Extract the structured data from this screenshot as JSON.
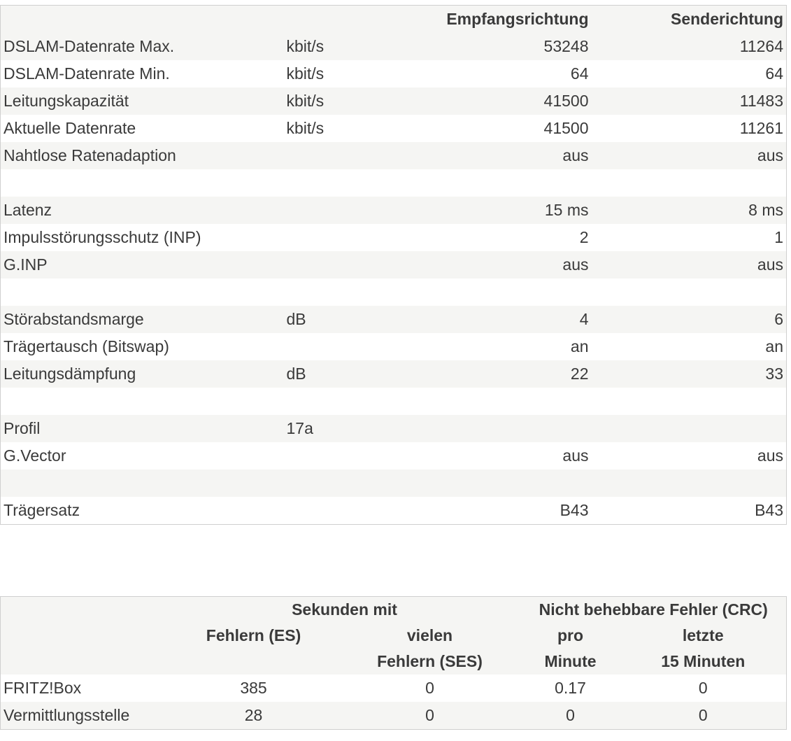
{
  "line_table": {
    "headers": [
      "",
      "",
      "Empfangsrichtung",
      "Senderichtung"
    ],
    "rows": [
      {
        "label": "DSLAM-Datenrate Max.",
        "unit": "kbit/s",
        "rx": "53248",
        "tx": "11264"
      },
      {
        "label": "DSLAM-Datenrate Min.",
        "unit": "kbit/s",
        "rx": "64",
        "tx": "64"
      },
      {
        "label": "Leitungskapazität",
        "unit": "kbit/s",
        "rx": "41500",
        "tx": "11483"
      },
      {
        "label": "Aktuelle Datenrate",
        "unit": "kbit/s",
        "rx": "41500",
        "tx": "11261"
      },
      {
        "label": "Nahtlose Ratenadaption",
        "unit": "",
        "rx": "aus",
        "tx": "aus"
      },
      {
        "label": "",
        "unit": "",
        "rx": "",
        "tx": ""
      },
      {
        "label": "Latenz",
        "unit": "",
        "rx": "15 ms",
        "tx": "8 ms"
      },
      {
        "label": "Impulsstörungsschutz (INP)",
        "unit": "",
        "rx": "2",
        "tx": "1"
      },
      {
        "label": "G.INP",
        "unit": "",
        "rx": "aus",
        "tx": "aus"
      },
      {
        "label": "",
        "unit": "",
        "rx": "",
        "tx": ""
      },
      {
        "label": "Störabstandsmarge",
        "unit": "dB",
        "rx": "4",
        "tx": "6"
      },
      {
        "label": "Trägertausch (Bitswap)",
        "unit": "",
        "rx": "an",
        "tx": "an"
      },
      {
        "label": "Leitungsdämpfung",
        "unit": "dB",
        "rx": "22",
        "tx": "33"
      },
      {
        "label": "",
        "unit": "",
        "rx": "",
        "tx": ""
      },
      {
        "label": "Profil",
        "unit": "17a",
        "rx": "",
        "tx": ""
      },
      {
        "label": "G.Vector",
        "unit": "",
        "rx": "aus",
        "tx": "aus"
      },
      {
        "label": "",
        "unit": "",
        "rx": "",
        "tx": ""
      },
      {
        "label": "Trägersatz",
        "unit": "",
        "rx": "B43",
        "tx": "B43"
      }
    ]
  },
  "error_table": {
    "group_seconds": "Sekunden mit",
    "group_crc": "Nicht behebbare Fehler (CRC)",
    "col_es": "Fehlern (ES)",
    "col_ses_1": "vielen",
    "col_ses_2": "Fehlern (SES)",
    "col_min_1": "pro",
    "col_min_2": "Minute",
    "col_15_1": "letzte",
    "col_15_2": "15 Minuten",
    "rows": [
      {
        "label": "FRITZ!Box",
        "es": "385",
        "ses": "0",
        "per_min": "0.17",
        "last15": "0"
      },
      {
        "label": "Vermittlungsstelle",
        "es": "28",
        "ses": "0",
        "per_min": "0",
        "last15": "0"
      }
    ]
  }
}
